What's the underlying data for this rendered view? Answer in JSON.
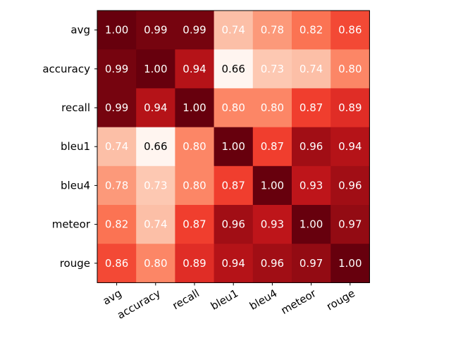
{
  "chart_data": {
    "type": "heatmap",
    "colormap": "Reds",
    "value_range": [
      0.66,
      1.0
    ],
    "labels": [
      "avg",
      "accuracy",
      "recall",
      "bleu1",
      "bleu4",
      "meteor",
      "rouge"
    ],
    "x_tick_rotation_deg": 30,
    "matrix": [
      [
        1.0,
        0.99,
        0.99,
        0.74,
        0.78,
        0.82,
        0.86
      ],
      [
        0.99,
        1.0,
        0.94,
        0.66,
        0.73,
        0.74,
        0.8
      ],
      [
        0.99,
        0.94,
        1.0,
        0.8,
        0.8,
        0.87,
        0.89
      ],
      [
        0.74,
        0.66,
        0.8,
        1.0,
        0.87,
        0.96,
        0.94
      ],
      [
        0.78,
        0.73,
        0.8,
        0.87,
        1.0,
        0.93,
        0.96
      ],
      [
        0.82,
        0.74,
        0.87,
        0.96,
        0.93,
        1.0,
        0.97
      ],
      [
        0.86,
        0.8,
        0.89,
        0.94,
        0.96,
        0.97,
        1.0
      ]
    ],
    "cell_labels": [
      [
        "1.00",
        "0.99",
        "0.99",
        "0.74",
        "0.78",
        "0.82",
        "0.86"
      ],
      [
        "0.99",
        "1.00",
        "0.94",
        "0.66",
        "0.73",
        "0.74",
        "0.80"
      ],
      [
        "0.99",
        "0.94",
        "1.00",
        "0.80",
        "0.80",
        "0.87",
        "0.89"
      ],
      [
        "0.74",
        "0.66",
        "0.80",
        "1.00",
        "0.87",
        "0.96",
        "0.94"
      ],
      [
        "0.78",
        "0.73",
        "0.80",
        "0.87",
        "1.00",
        "0.93",
        "0.96"
      ],
      [
        "0.82",
        "0.74",
        "0.87",
        "0.96",
        "0.93",
        "1.00",
        "0.97"
      ],
      [
        "0.86",
        "0.80",
        "0.89",
        "0.94",
        "0.96",
        "0.97",
        "1.00"
      ]
    ],
    "text_colors": {
      "light": "#ffffff",
      "dark": "#000000"
    },
    "grid": false
  }
}
